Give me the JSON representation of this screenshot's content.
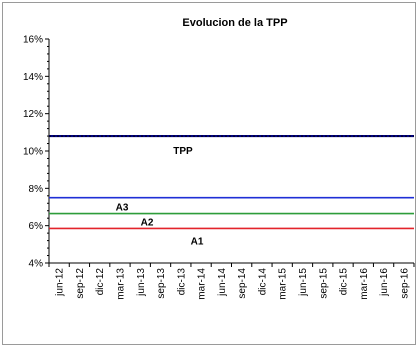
{
  "chart_data": {
    "type": "line",
    "title": "Evolucion de la TPP",
    "xlabel": "",
    "ylabel": "",
    "categories": [
      "jun-12",
      "sep-12",
      "dic-12",
      "mar-13",
      "jun-13",
      "sep-13",
      "dic-13",
      "mar-14",
      "jun-14",
      "sep-14",
      "dic-14",
      "mar-15",
      "jun-15",
      "sep-15",
      "dic-15",
      "mar-16",
      "jun-16",
      "sep-16"
    ],
    "ylim": [
      0.04,
      0.16
    ],
    "yticks": [
      "4%",
      "6%",
      "8%",
      "10%",
      "12%",
      "14%",
      "16%"
    ],
    "grid": false,
    "legend": "none",
    "series": [
      {
        "name": "TPP",
        "color": "#000080",
        "values": [
          0.108,
          0.108,
          0.108,
          0.108,
          0.108,
          0.108,
          0.108,
          0.108,
          0.108,
          0.108,
          0.108,
          0.108,
          0.108,
          0.108,
          0.108,
          0.108,
          0.108,
          0.108
        ]
      },
      {
        "name": "A3",
        "color": "#1f2fd6",
        "values": [
          0.075,
          0.075,
          0.075,
          0.075,
          0.075,
          0.075,
          0.075,
          0.075,
          0.075,
          0.075,
          0.075,
          0.075,
          0.075,
          0.075,
          0.075,
          0.075,
          0.075,
          0.075
        ]
      },
      {
        "name": "A2",
        "color": "#2e9d3a",
        "values": [
          0.0665,
          0.0665,
          0.0665,
          0.0665,
          0.0665,
          0.0665,
          0.0665,
          0.0665,
          0.0665,
          0.0665,
          0.0665,
          0.0665,
          0.0665,
          0.0665,
          0.0665,
          0.0665,
          0.0665,
          0.0665
        ]
      },
      {
        "name": "A1",
        "color": "#e3242b",
        "values": [
          0.0585,
          0.0585,
          0.0585,
          0.0585,
          0.0585,
          0.0585,
          0.0585,
          0.0585,
          0.0585,
          0.0585,
          0.0585,
          0.0585,
          0.0585,
          0.0585,
          0.0585,
          0.0585,
          0.0585,
          0.0585
        ]
      }
    ]
  }
}
